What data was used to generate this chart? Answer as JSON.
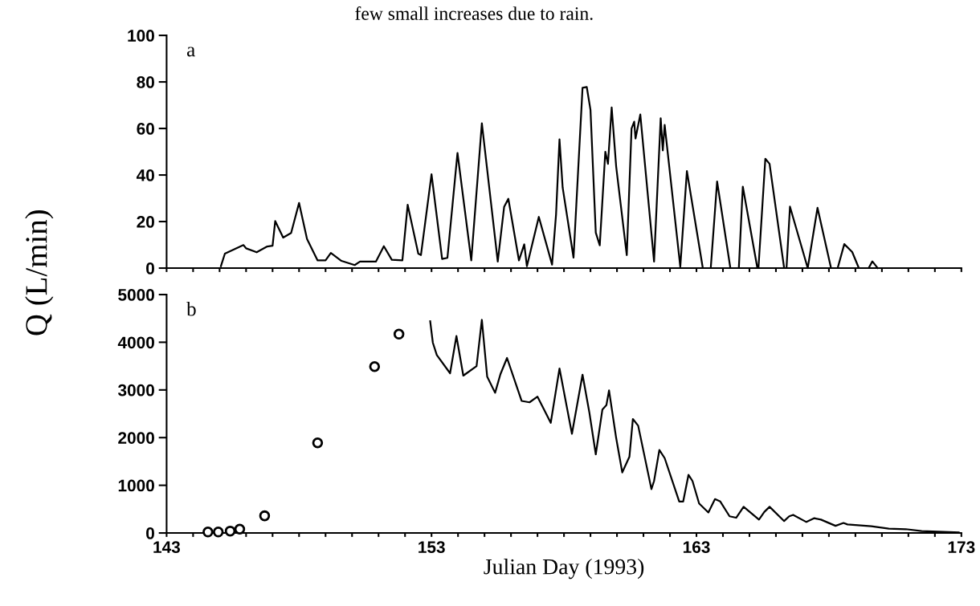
{
  "chart_data": [
    {
      "type": "line",
      "title": "few small increases due to rain.",
      "ylabel": "Q (L/min)",
      "annotations": [
        "a"
      ],
      "tick_labels": "y",
      "grid": false,
      "legend": false,
      "marker": "none",
      "line_style": "solid",
      "xlim": [
        143,
        173
      ],
      "ylim": [
        0,
        100
      ],
      "yticks": [
        0,
        20,
        40,
        60,
        80,
        100
      ],
      "xticks": [
        {
          "value": 143,
          "label": null
        },
        {
          "value": 144,
          "label": null
        },
        {
          "value": 145,
          "label": null
        },
        {
          "value": 146,
          "label": null
        },
        {
          "value": 147,
          "label": null
        },
        {
          "value": 148,
          "label": null
        },
        {
          "value": 149,
          "label": null
        },
        {
          "value": 150,
          "label": null
        },
        {
          "value": 151,
          "label": null
        },
        {
          "value": 152,
          "label": null
        },
        {
          "value": 153,
          "label": null
        },
        {
          "value": 154,
          "label": null
        },
        {
          "value": 155,
          "label": null
        },
        {
          "value": 156,
          "label": null
        },
        {
          "value": 157,
          "label": null
        },
        {
          "value": 158,
          "label": null
        },
        {
          "value": 159,
          "label": null
        },
        {
          "value": 160,
          "label": null
        },
        {
          "value": 161,
          "label": null
        },
        {
          "value": 162,
          "label": null
        },
        {
          "value": 163,
          "label": null
        },
        {
          "value": 164,
          "label": null
        },
        {
          "value": 165,
          "label": null
        },
        {
          "value": 166,
          "label": null
        },
        {
          "value": 167,
          "label": null
        },
        {
          "value": 168,
          "label": null
        },
        {
          "value": 169,
          "label": null
        },
        {
          "value": 170,
          "label": null
        },
        {
          "value": 171,
          "label": null
        },
        {
          "value": 172,
          "label": null
        },
        {
          "value": 173,
          "label": null
        }
      ],
      "series": [
        {
          "color": "#000000",
          "x": [
            145.05,
            145.2,
            145.9,
            146.0,
            146.4,
            146.8,
            147.0,
            147.1,
            147.4,
            147.7,
            148.0,
            148.3,
            148.7,
            149.0,
            149.2,
            149.6,
            150.1,
            150.3,
            150.9,
            151.2,
            151.5,
            151.9,
            152.1,
            152.5,
            152.6,
            153.0,
            153.4,
            153.6,
            153.98,
            154.5,
            154.9,
            155.5,
            155.74,
            155.9,
            156.3,
            156.5,
            156.6,
            157.05,
            157.55,
            157.7,
            157.83,
            157.95,
            158.36,
            158.7,
            158.86,
            159.0,
            159.2,
            159.35,
            159.56,
            159.66,
            159.8,
            159.97,
            160.37,
            160.55,
            160.65,
            160.7,
            160.88,
            161.4,
            161.65,
            161.73,
            161.8,
            162.39,
            162.64,
            163.24,
            163.54,
            163.78,
            164.28,
            164.6,
            164.75,
            165.3,
            165.34,
            165.6,
            165.76,
            166.31,
            166.4,
            166.53,
            167.2,
            167.57,
            168.08,
            168.33,
            168.58,
            168.88,
            169.13,
            169.5,
            169.64,
            169.84
          ],
          "values": [
            0.8,
            6.2,
            9.9,
            8.5,
            6.8,
            9.3,
            9.6,
            20.2,
            13.1,
            15.1,
            28,
            12.5,
            3.3,
            3.3,
            6.5,
            3.1,
            1.3,
            2.8,
            2.8,
            9.4,
            3.6,
            3.3,
            27.2,
            6.2,
            5.6,
            40.3,
            3.9,
            4.4,
            49.5,
            3.3,
            62.2,
            2.8,
            26.3,
            29.8,
            3.3,
            10.2,
            0.8,
            22,
            1.5,
            23,
            55.3,
            34.6,
            4.5,
            77.5,
            77.8,
            68,
            15.2,
            9.8,
            50,
            44.8,
            69,
            43.6,
            5.6,
            60,
            62.9,
            55.7,
            66,
            2.8,
            64.4,
            50.6,
            61.5,
            0.6,
            41.7,
            0,
            0,
            37.2,
            0,
            0,
            35,
            0,
            0,
            47,
            44.8,
            0,
            0,
            26.4,
            0,
            25.9,
            0,
            0,
            10.3,
            6.9,
            0,
            0,
            2.9,
            0
          ]
        }
      ]
    },
    {
      "type": "line",
      "xlabel": "Julian Day (1993)",
      "annotations": [
        "b"
      ],
      "grid": false,
      "legend": false,
      "marker": "none",
      "line_style": "solid",
      "xlim": [
        143,
        173
      ],
      "ylim": [
        0,
        5000
      ],
      "yticks": [
        0,
        1000,
        2000,
        3000,
        4000,
        5000
      ],
      "xticks": [
        143,
        {
          "value": 144,
          "label": null
        },
        {
          "value": 145,
          "label": null
        },
        {
          "value": 146,
          "label": null
        },
        {
          "value": 147,
          "label": null
        },
        {
          "value": 148,
          "label": null
        },
        {
          "value": 149,
          "label": null
        },
        {
          "value": 150,
          "label": null
        },
        {
          "value": 151,
          "label": null
        },
        {
          "value": 152,
          "label": null
        },
        153,
        {
          "value": 154,
          "label": null
        },
        {
          "value": 155,
          "label": null
        },
        {
          "value": 156,
          "label": null
        },
        {
          "value": 157,
          "label": null
        },
        {
          "value": 158,
          "label": null
        },
        {
          "value": 159,
          "label": null
        },
        {
          "value": 160,
          "label": null
        },
        {
          "value": 161,
          "label": null
        },
        {
          "value": 162,
          "label": null
        },
        163,
        {
          "value": 164,
          "label": null
        },
        {
          "value": 165,
          "label": null
        },
        {
          "value": 166,
          "label": null
        },
        {
          "value": 167,
          "label": null
        },
        {
          "value": 168,
          "label": null
        },
        {
          "value": 169,
          "label": null
        },
        {
          "value": 170,
          "label": null
        },
        {
          "value": 171,
          "label": null
        },
        {
          "value": 172,
          "label": null
        },
        173
      ],
      "series": [
        {
          "type": "scatter",
          "marker": "circle",
          "color": "#000000",
          "x": [
            144.56,
            144.95,
            145.4,
            145.76,
            146.7,
            148.7,
            150.85,
            151.77
          ],
          "values": [
            20,
            20,
            40,
            80,
            360,
            1890,
            3490,
            4170
          ]
        },
        {
          "color": "#000000",
          "x": [
            152.95,
            153.05,
            153.2,
            153.7,
            153.94,
            154.2,
            154.7,
            154.9,
            155.1,
            155.4,
            155.6,
            155.85,
            156.4,
            156.7,
            157.0,
            157.5,
            157.83,
            158.3,
            158.7,
            158.96,
            159.2,
            159.45,
            159.6,
            159.7,
            159.97,
            160.2,
            160.47,
            160.6,
            160.8,
            161.3,
            161.4,
            161.6,
            161.8,
            162.35,
            162.5,
            162.7,
            162.85,
            163.1,
            163.45,
            163.7,
            163.9,
            164.25,
            164.5,
            164.78,
            165.36,
            165.56,
            165.76,
            166.31,
            166.5,
            166.65,
            167.15,
            167.45,
            167.7,
            168.25,
            168.55,
            168.7,
            169.6,
            170.26,
            170.9,
            171.5,
            172.9
          ],
          "values": [
            4440,
            3990,
            3730,
            3350,
            4130,
            3300,
            3500,
            4470,
            3280,
            2940,
            3330,
            3670,
            2770,
            2740,
            2860,
            2310,
            3450,
            2080,
            3320,
            2520,
            1650,
            2590,
            2680,
            2990,
            1990,
            1270,
            1600,
            2390,
            2250,
            920,
            1090,
            1740,
            1570,
            660,
            660,
            1220,
            1090,
            620,
            430,
            710,
            660,
            350,
            320,
            550,
            280,
            440,
            550,
            250,
            350,
            380,
            230,
            310,
            280,
            150,
            210,
            180,
            140,
            90,
            80,
            40,
            10
          ]
        }
      ]
    }
  ]
}
